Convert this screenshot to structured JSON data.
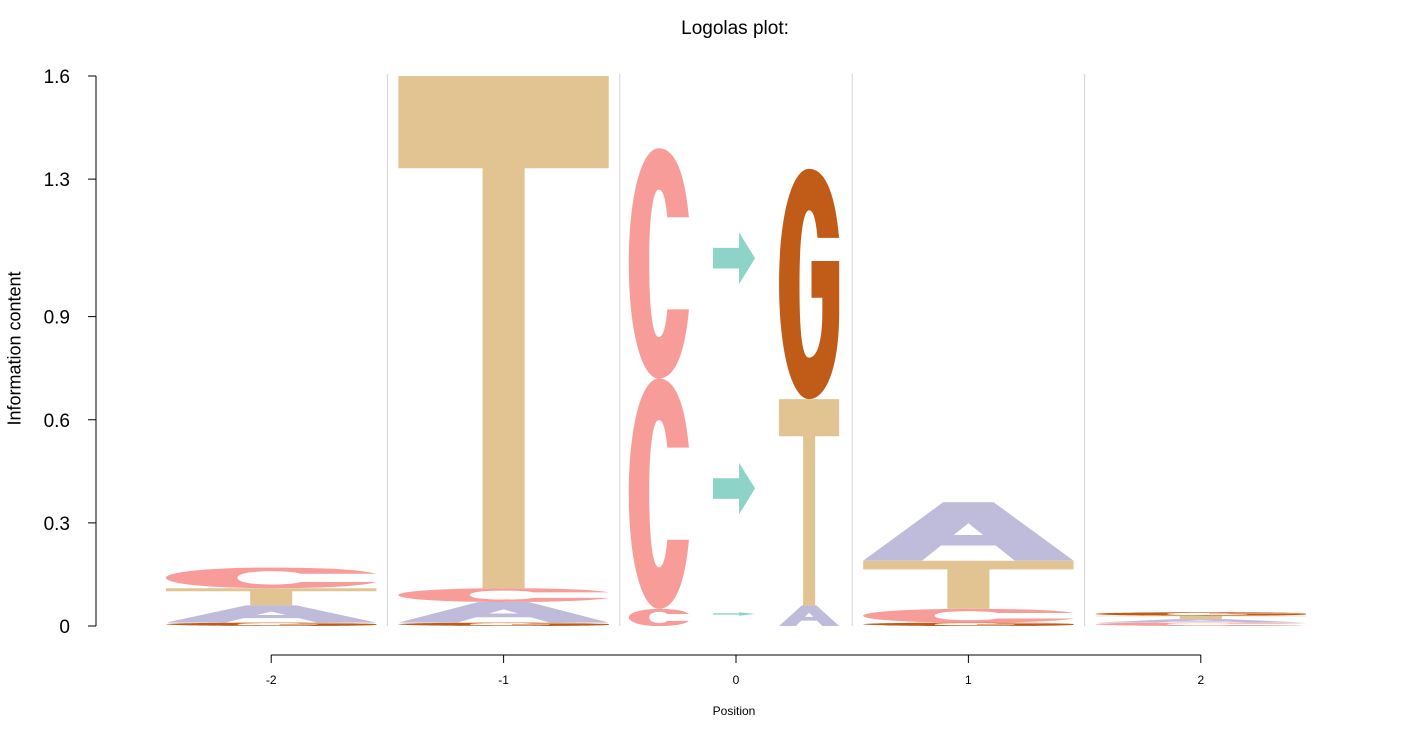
{
  "chart_data": {
    "type": "sequence-logo",
    "title": "Logolas plot:",
    "xlabel": "Position",
    "ylabel": "Information content",
    "ylim": [
      0,
      1.6
    ],
    "y_ticks": [
      "0",
      "0.3",
      "0.6",
      "0.9",
      "1.3",
      "1.6"
    ],
    "y_tick_values": [
      0,
      0.3,
      0.6,
      0.9,
      1.3,
      1.6
    ],
    "x_ticks": [
      "-2",
      "-1",
      "0",
      "1",
      "2"
    ],
    "colors": {
      "A": "#bfbbdb",
      "C": "#f89c9a",
      "G": "#c05b18",
      "T": "#e2c492",
      "arrow": "#8dd3c7",
      "separator": "#d3d3d3"
    },
    "columns": [
      {
        "position": "-2",
        "stacks": [
          {
            "letters": [
              {
                "symbol": "G",
                "height": 0.01
              },
              {
                "symbol": "A",
                "height": 0.05
              },
              {
                "symbol": "T",
                "height": 0.05
              },
              {
                "symbol": "C",
                "height": 0.06
              }
            ]
          }
        ]
      },
      {
        "position": "-1",
        "stacks": [
          {
            "letters": [
              {
                "symbol": "G",
                "height": 0.01
              },
              {
                "symbol": "A",
                "height": 0.06
              },
              {
                "symbol": "C",
                "height": 0.04
              },
              {
                "symbol": "T",
                "height": 1.49
              }
            ]
          }
        ]
      },
      {
        "position": "0",
        "stacks": [
          {
            "letters": [
              {
                "symbol": "C",
                "height": 0.05
              },
              {
                "symbol": "C",
                "height": 0.67
              },
              {
                "symbol": "C",
                "height": 0.67
              }
            ]
          },
          {
            "letters": [
              {
                "symbol": "arrow",
                "height": 0.01
              },
              {
                "symbol": "arrow",
                "height": 0.15
              },
              {
                "symbol": "arrow",
                "height": 0.15
              }
            ],
            "anchors": [
              0.035,
              0.4,
              1.07
            ]
          },
          {
            "letters": [
              {
                "symbol": "A",
                "height": 0.06
              },
              {
                "symbol": "T",
                "height": 0.6
              },
              {
                "symbol": "G",
                "height": 0.67
              }
            ]
          }
        ]
      },
      {
        "position": "1",
        "stacks": [
          {
            "letters": [
              {
                "symbol": "G",
                "height": 0.01
              },
              {
                "symbol": "C",
                "height": 0.04
              },
              {
                "symbol": "T",
                "height": 0.14
              },
              {
                "symbol": "A",
                "height": 0.17
              }
            ]
          }
        ]
      },
      {
        "position": "2",
        "stacks": [
          {
            "letters": [
              {
                "symbol": "C",
                "height": 0.01
              },
              {
                "symbol": "A",
                "height": 0.01
              },
              {
                "symbol": "T",
                "height": 0.01
              },
              {
                "symbol": "G",
                "height": 0.01
              }
            ]
          }
        ]
      }
    ]
  }
}
